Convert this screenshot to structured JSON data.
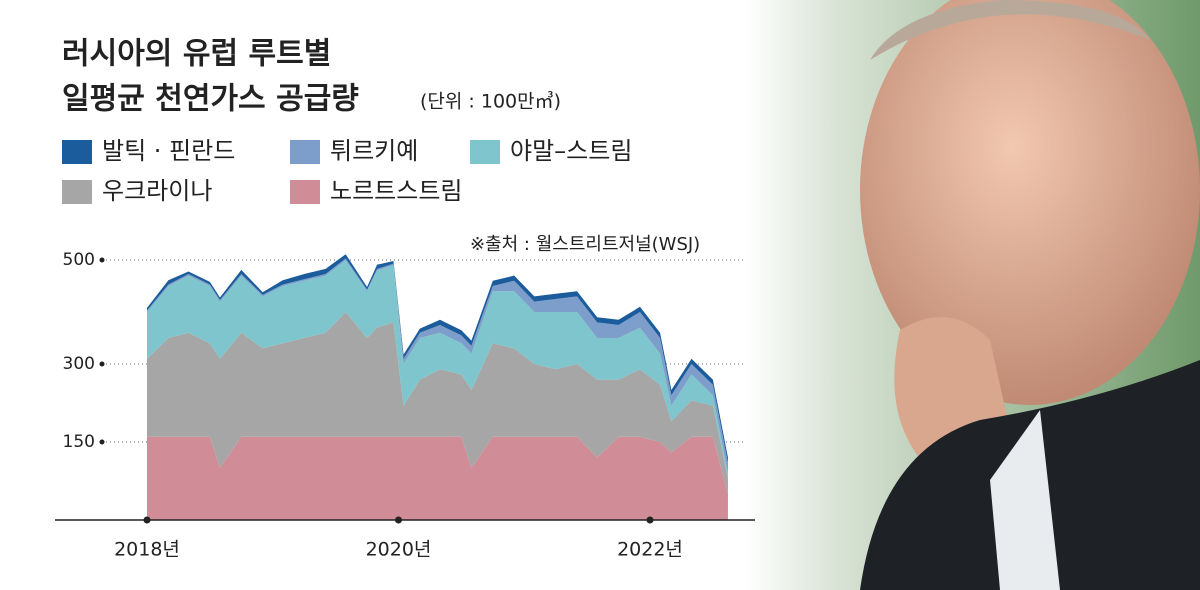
{
  "chart_data": {
    "type": "area",
    "title": "러시아의 유럽 루트별",
    "subtitle": "일평균 천연가스 공급량",
    "unit": "(단위 : 100만㎥)",
    "source": "※출처 : 월스트리트저널(WSJ)",
    "x": [
      2018.0,
      2018.17,
      2018.33,
      2018.5,
      2018.58,
      2018.75,
      2018.92,
      2019.08,
      2019.25,
      2019.42,
      2019.58,
      2019.75,
      2019.83,
      2019.96,
      2020.04,
      2020.17,
      2020.33,
      2020.5,
      2020.58,
      2020.75,
      2020.92,
      2021.08,
      2021.25,
      2021.42,
      2021.58,
      2021.75,
      2021.92,
      2022.08,
      2022.17,
      2022.33,
      2022.5,
      2022.62
    ],
    "series": [
      {
        "name": "발틱 · 핀란드",
        "color": "#1b5c9c",
        "values": [
          5,
          8,
          5,
          5,
          5,
          8,
          5,
          8,
          10,
          10,
          8,
          5,
          8,
          5,
          8,
          8,
          10,
          10,
          10,
          10,
          10,
          10,
          10,
          10,
          10,
          10,
          10,
          10,
          10,
          10,
          10,
          10
        ]
      },
      {
        "name": "튀르키예",
        "color": "#7d9dca",
        "values": [
          3,
          3,
          3,
          3,
          3,
          3,
          3,
          3,
          3,
          3,
          3,
          3,
          3,
          3,
          10,
          10,
          15,
          15,
          15,
          10,
          20,
          20,
          25,
          30,
          30,
          25,
          30,
          30,
          20,
          20,
          20,
          20
        ]
      },
      {
        "name": "야말–스트림",
        "color": "#7fc5cd",
        "values": [
          90,
          100,
          110,
          110,
          110,
          110,
          100,
          110,
          110,
          110,
          100,
          90,
          110,
          110,
          80,
          80,
          70,
          60,
          70,
          100,
          110,
          100,
          110,
          100,
          80,
          80,
          80,
          60,
          30,
          50,
          20,
          10
        ]
      },
      {
        "name": "우크라이나",
        "color": "#a6a6a6",
        "values": [
          150,
          190,
          200,
          180,
          210,
          200,
          170,
          180,
          190,
          200,
          240,
          190,
          210,
          220,
          60,
          110,
          130,
          120,
          150,
          180,
          170,
          140,
          130,
          140,
          150,
          110,
          130,
          110,
          60,
          70,
          60,
          30
        ]
      },
      {
        "name": "노르트스트림",
        "color": "#d08d97",
        "values": [
          160,
          160,
          160,
          160,
          100,
          160,
          160,
          160,
          160,
          160,
          160,
          160,
          160,
          160,
          160,
          160,
          160,
          160,
          100,
          160,
          160,
          160,
          160,
          160,
          120,
          160,
          160,
          150,
          130,
          160,
          160,
          50
        ]
      }
    ],
    "stack_order": "bottom-up from last series",
    "ylim": [
      0,
      500
    ],
    "yticks": [
      150,
      300,
      500
    ],
    "xlim": [
      2018,
      2022.62
    ],
    "xticks": [
      {
        "value": 2018,
        "label": "2018년"
      },
      {
        "value": 2020,
        "label": "2020년"
      },
      {
        "value": 2022,
        "label": "2022년"
      }
    ]
  }
}
